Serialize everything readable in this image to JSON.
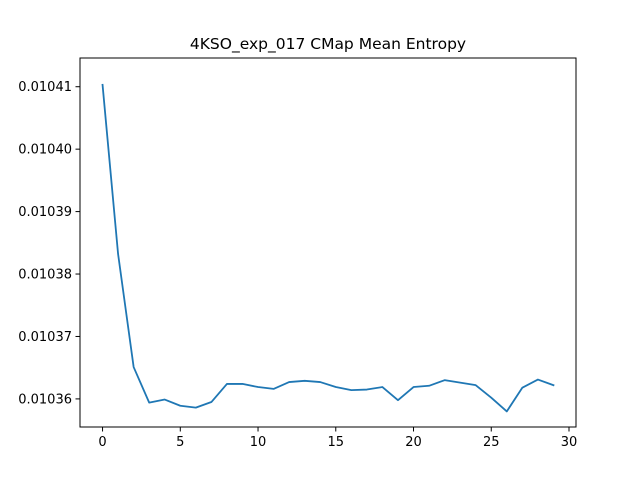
{
  "chart_data": {
    "type": "line",
    "title": "4KSO_exp_017 CMap Mean Entropy",
    "xlabel": "",
    "ylabel": "",
    "xlim": [
      -1.45,
      30.45
    ],
    "ylim": [
      0.0103555,
      0.0104146
    ],
    "x_ticks": [
      0,
      5,
      10,
      15,
      20,
      25,
      30
    ],
    "x_tick_labels": [
      "0",
      "5",
      "10",
      "15",
      "20",
      "25",
      "30"
    ],
    "y_ticks": [
      0.01036,
      0.01037,
      0.01038,
      0.01039,
      0.0104,
      0.01041
    ],
    "y_tick_labels": [
      "0.01036",
      "0.01037",
      "0.01038",
      "0.01039",
      "0.01040",
      "0.01041"
    ],
    "grid": false,
    "series": [
      {
        "color": "#1f77b4",
        "x": [
          0,
          1,
          2,
          3,
          4,
          5,
          6,
          7,
          8,
          9,
          10,
          11,
          12,
          13,
          14,
          15,
          16,
          17,
          18,
          19,
          20,
          21,
          22,
          23,
          24,
          25,
          26,
          27,
          28,
          29
        ],
        "values": [
          0.0104103,
          0.0103832,
          0.0103651,
          0.0103594,
          0.0103599,
          0.0103589,
          0.0103586,
          0.0103595,
          0.0103624,
          0.0103624,
          0.0103619,
          0.0103616,
          0.0103627,
          0.0103629,
          0.0103627,
          0.0103619,
          0.0103614,
          0.0103615,
          0.0103619,
          0.0103598,
          0.0103619,
          0.0103621,
          0.010363,
          0.0103626,
          0.0103622,
          0.0103602,
          0.010358,
          0.0103618,
          0.0103631,
          0.0103622
        ]
      }
    ]
  }
}
